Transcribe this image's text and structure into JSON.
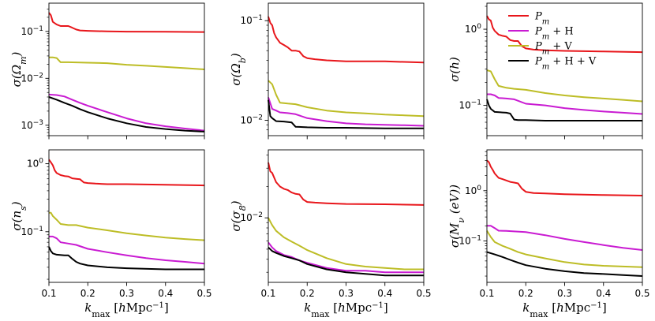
{
  "chart_data": {
    "type": "line",
    "layout": "2x3 grid of panels",
    "legend": {
      "location": "top-right panel, upper-right",
      "entries": [
        {
          "label": "P_m",
          "color": "#e8161b"
        },
        {
          "label": "P_m + H",
          "color": "#c91bd2"
        },
        {
          "label": "P_m + V",
          "color": "#bdbd26"
        },
        {
          "label": "P_m + H + V",
          "color": "#000000"
        }
      ]
    },
    "xlabel": "k_max [hMpc^-1]",
    "xlim": [
      0.1,
      0.5
    ],
    "xticks": [
      0.1,
      0.2,
      0.3,
      0.4,
      0.5
    ],
    "panels": [
      {
        "ylabel": "σ(Ω_m)",
        "yscale": "log",
        "ylim": [
          0.0006,
          0.4
        ],
        "yticks": [
          {
            "v": 0.1,
            "label": "10^-1"
          },
          {
            "v": 0.01,
            "label": "10^-2"
          },
          {
            "v": 0.001,
            "label": "10^-3"
          }
        ],
        "series": [
          {
            "name": "P_m",
            "x": [
              0.1,
              0.105,
              0.11,
              0.12,
              0.13,
              0.14,
              0.15,
              0.16,
              0.17,
              0.18,
              0.2,
              0.25,
              0.3,
              0.4,
              0.5
            ],
            "y": [
              0.25,
              0.22,
              0.16,
              0.14,
              0.13,
              0.13,
              0.13,
              0.12,
              0.11,
              0.105,
              0.103,
              0.1,
              0.099,
              0.098,
              0.097
            ]
          },
          {
            "name": "P_m + H",
            "x": [
              0.1,
              0.12,
              0.14,
              0.16,
              0.18,
              0.2,
              0.25,
              0.3,
              0.35,
              0.4,
              0.45,
              0.5
            ],
            "y": [
              0.0045,
              0.0044,
              0.0041,
              0.0035,
              0.003,
              0.0026,
              0.0019,
              0.0014,
              0.0011,
              0.00095,
              0.00085,
              0.00077
            ]
          },
          {
            "name": "P_m + V",
            "x": [
              0.1,
              0.11,
              0.12,
              0.13,
              0.15,
              0.2,
              0.25,
              0.3,
              0.35,
              0.4,
              0.45,
              0.5
            ],
            "y": [
              0.028,
              0.028,
              0.027,
              0.022,
              0.022,
              0.0215,
              0.021,
              0.0195,
              0.0185,
              0.0175,
              0.0165,
              0.0155
            ]
          },
          {
            "name": "P_m + H + V",
            "x": [
              0.1,
              0.12,
              0.14,
              0.16,
              0.18,
              0.2,
              0.25,
              0.3,
              0.35,
              0.4,
              0.45,
              0.5
            ],
            "y": [
              0.004,
              0.0035,
              0.003,
              0.0026,
              0.0022,
              0.0019,
              0.0014,
              0.0011,
              0.00092,
              0.00083,
              0.00077,
              0.00073
            ]
          }
        ]
      },
      {
        "ylabel": "σ(Ω_b)",
        "yscale": "log",
        "ylim": [
          0.007,
          0.15
        ],
        "yticks": [
          {
            "v": 0.1,
            "label": "10^-1"
          },
          {
            "v": 0.01,
            "label": "10^-2"
          }
        ],
        "series": [
          {
            "name": "P_m",
            "x": [
              0.1,
              0.105,
              0.11,
              0.115,
              0.12,
              0.13,
              0.14,
              0.15,
              0.16,
              0.17,
              0.18,
              0.19,
              0.2,
              0.22,
              0.25,
              0.3,
              0.4,
              0.5
            ],
            "y": [
              0.11,
              0.095,
              0.09,
              0.075,
              0.068,
              0.06,
              0.057,
              0.054,
              0.05,
              0.05,
              0.049,
              0.044,
              0.042,
              0.041,
              0.04,
              0.039,
              0.039,
              0.038
            ]
          },
          {
            "name": "P_m + H",
            "x": [
              0.1,
              0.11,
              0.12,
              0.13,
              0.15,
              0.17,
              0.2,
              0.25,
              0.3,
              0.35,
              0.4,
              0.45,
              0.5
            ],
            "y": [
              0.017,
              0.013,
              0.0125,
              0.012,
              0.0118,
              0.0115,
              0.0105,
              0.0098,
              0.0093,
              0.0091,
              0.009,
              0.0089,
              0.0088
            ]
          },
          {
            "name": "P_m + V",
            "x": [
              0.1,
              0.11,
              0.12,
              0.13,
              0.15,
              0.17,
              0.2,
              0.25,
              0.3,
              0.35,
              0.4,
              0.45,
              0.5
            ],
            "y": [
              0.025,
              0.023,
              0.018,
              0.015,
              0.0147,
              0.0145,
              0.0135,
              0.0125,
              0.012,
              0.0117,
              0.0114,
              0.0112,
              0.011
            ]
          },
          {
            "name": "P_m + H + V",
            "x": [
              0.1,
              0.105,
              0.11,
              0.12,
              0.14,
              0.16,
              0.17,
              0.2,
              0.25,
              0.3,
              0.4,
              0.5
            ],
            "y": [
              0.016,
              0.011,
              0.0105,
              0.0098,
              0.0097,
              0.0095,
              0.0086,
              0.0085,
              0.0084,
              0.0084,
              0.0083,
              0.0083
            ]
          }
        ]
      },
      {
        "ylabel": "σ(h)",
        "yscale": "log",
        "ylim": [
          0.04,
          2.2
        ],
        "yticks": [
          {
            "v": 1,
            "label": "10^0"
          },
          {
            "v": 0.1,
            "label": "10^-1"
          }
        ],
        "series": [
          {
            "name": "P_m",
            "x": [
              0.1,
              0.105,
              0.11,
              0.115,
              0.12,
              0.13,
              0.14,
              0.15,
              0.16,
              0.17,
              0.18,
              0.19,
              0.2,
              0.22,
              0.25,
              0.3,
              0.4,
              0.5
            ],
            "y": [
              1.5,
              1.35,
              1.3,
              1.05,
              0.95,
              0.85,
              0.82,
              0.8,
              0.72,
              0.7,
              0.7,
              0.6,
              0.56,
              0.54,
              0.53,
              0.52,
              0.51,
              0.5
            ]
          },
          {
            "name": "P_m + H",
            "x": [
              0.1,
              0.11,
              0.12,
              0.13,
              0.15,
              0.17,
              0.2,
              0.25,
              0.3,
              0.35,
              0.4,
              0.45,
              0.5
            ],
            "y": [
              0.14,
              0.14,
              0.135,
              0.125,
              0.123,
              0.12,
              0.105,
              0.1,
              0.092,
              0.087,
              0.083,
              0.08,
              0.077
            ]
          },
          {
            "name": "P_m + V",
            "x": [
              0.1,
              0.11,
              0.12,
              0.13,
              0.15,
              0.17,
              0.2,
              0.25,
              0.3,
              0.35,
              0.4,
              0.45,
              0.5
            ],
            "y": [
              0.29,
              0.28,
              0.22,
              0.18,
              0.17,
              0.165,
              0.16,
              0.145,
              0.135,
              0.128,
              0.123,
              0.118,
              0.113
            ]
          },
          {
            "name": "P_m + H + V",
            "x": [
              0.1,
              0.105,
              0.11,
              0.12,
              0.15,
              0.16,
              0.17,
              0.18,
              0.2,
              0.25,
              0.3,
              0.4,
              0.5
            ],
            "y": [
              0.12,
              0.1,
              0.09,
              0.082,
              0.08,
              0.078,
              0.065,
              0.064,
              0.064,
              0.063,
              0.063,
              0.063,
              0.063
            ]
          }
        ]
      },
      {
        "ylabel": "σ(n_s)",
        "yscale": "log",
        "ylim": [
          0.018,
          1.6
        ],
        "yticks": [
          {
            "v": 1,
            "label": "10^0"
          },
          {
            "v": 0.1,
            "label": "10^-1"
          }
        ],
        "series": [
          {
            "name": "P_m",
            "x": [
              0.1,
              0.105,
              0.11,
              0.115,
              0.12,
              0.13,
              0.14,
              0.15,
              0.16,
              0.17,
              0.18,
              0.19,
              0.2,
              0.22,
              0.25,
              0.3,
              0.4,
              0.5
            ],
            "y": [
              1.15,
              1.05,
              0.95,
              0.8,
              0.73,
              0.68,
              0.66,
              0.65,
              0.61,
              0.6,
              0.59,
              0.53,
              0.52,
              0.51,
              0.5,
              0.5,
              0.49,
              0.48
            ]
          },
          {
            "name": "P_m + H",
            "x": [
              0.1,
              0.11,
              0.12,
              0.13,
              0.15,
              0.17,
              0.2,
              0.25,
              0.3,
              0.35,
              0.4,
              0.45,
              0.5
            ],
            "y": [
              0.085,
              0.085,
              0.08,
              0.07,
              0.067,
              0.064,
              0.056,
              0.05,
              0.045,
              0.041,
              0.038,
              0.036,
              0.034
            ]
          },
          {
            "name": "P_m + V",
            "x": [
              0.1,
              0.105,
              0.11,
              0.12,
              0.13,
              0.15,
              0.17,
              0.2,
              0.25,
              0.3,
              0.35,
              0.4,
              0.45,
              0.5
            ],
            "y": [
              0.19,
              0.19,
              0.17,
              0.15,
              0.13,
              0.125,
              0.125,
              0.115,
              0.105,
              0.095,
              0.088,
              0.082,
              0.078,
              0.075
            ]
          },
          {
            "name": "P_m + H + V",
            "x": [
              0.1,
              0.105,
              0.11,
              0.12,
              0.14,
              0.15,
              0.16,
              0.17,
              0.18,
              0.2,
              0.25,
              0.3,
              0.4,
              0.5
            ],
            "y": [
              0.06,
              0.052,
              0.048,
              0.046,
              0.045,
              0.045,
              0.04,
              0.036,
              0.034,
              0.032,
              0.03,
              0.029,
              0.028,
              0.028
            ]
          }
        ]
      },
      {
        "ylabel": "σ(σ_8)",
        "yscale": "log",
        "ylim": [
          0.0024,
          0.045
        ],
        "yticks": [
          {
            "v": 0.01,
            "label": "10^-2"
          }
        ],
        "series": [
          {
            "name": "P_m",
            "x": [
              0.1,
              0.105,
              0.11,
              0.12,
              0.13,
              0.14,
              0.15,
              0.16,
              0.17,
              0.18,
              0.19,
              0.2,
              0.22,
              0.25,
              0.3,
              0.4,
              0.5
            ],
            "y": [
              0.034,
              0.028,
              0.027,
              0.022,
              0.02,
              0.019,
              0.0185,
              0.0175,
              0.017,
              0.0168,
              0.015,
              0.0142,
              0.014,
              0.0138,
              0.0136,
              0.0135,
              0.0133
            ]
          },
          {
            "name": "P_m + H",
            "x": [
              0.1,
              0.11,
              0.12,
              0.14,
              0.16,
              0.18,
              0.2,
              0.25,
              0.3,
              0.35,
              0.4,
              0.45,
              0.5
            ],
            "y": [
              0.0058,
              0.0052,
              0.0048,
              0.0044,
              0.0042,
              0.0039,
              0.0037,
              0.0033,
              0.0031,
              0.0031,
              0.003,
              0.003,
              0.003
            ]
          },
          {
            "name": "P_m + V",
            "x": [
              0.1,
              0.11,
              0.12,
              0.14,
              0.16,
              0.18,
              0.2,
              0.25,
              0.3,
              0.35,
              0.4,
              0.45,
              0.5
            ],
            "y": [
              0.01,
              0.0085,
              0.0075,
              0.0065,
              0.0059,
              0.0054,
              0.0049,
              0.0041,
              0.0036,
              0.0034,
              0.0033,
              0.0032,
              0.0032
            ]
          },
          {
            "name": "P_m + H + V",
            "x": [
              0.1,
              0.11,
              0.12,
              0.14,
              0.16,
              0.18,
              0.2,
              0.25,
              0.3,
              0.35,
              0.4,
              0.45,
              0.5
            ],
            "y": [
              0.0052,
              0.0048,
              0.0046,
              0.0043,
              0.0041,
              0.0039,
              0.0036,
              0.0032,
              0.003,
              0.0029,
              0.0028,
              0.0028,
              0.0028
            ]
          }
        ]
      },
      {
        "ylabel": "σ(M_ν (eV))",
        "yscale": "log",
        "ylim": [
          0.015,
          6.5
        ],
        "yticks": [
          {
            "v": 1,
            "label": "10^0"
          },
          {
            "v": 0.1,
            "label": "10^-1"
          }
        ],
        "series": [
          {
            "name": "P_m",
            "x": [
              0.1,
              0.105,
              0.11,
              0.115,
              0.12,
              0.13,
              0.14,
              0.15,
              0.16,
              0.17,
              0.18,
              0.19,
              0.2,
              0.22,
              0.25,
              0.3,
              0.4,
              0.5
            ],
            "y": [
              4.0,
              3.7,
              3.0,
              2.6,
              2.2,
              1.8,
              1.7,
              1.6,
              1.5,
              1.45,
              1.4,
              1.1,
              0.95,
              0.9,
              0.88,
              0.85,
              0.82,
              0.8
            ]
          },
          {
            "name": "P_m + H",
            "x": [
              0.1,
              0.11,
              0.12,
              0.13,
              0.15,
              0.17,
              0.2,
              0.25,
              0.3,
              0.35,
              0.4,
              0.45,
              0.5
            ],
            "y": [
              0.2,
              0.2,
              0.18,
              0.16,
              0.158,
              0.155,
              0.15,
              0.13,
              0.11,
              0.095,
              0.083,
              0.073,
              0.066
            ]
          },
          {
            "name": "P_m + V",
            "x": [
              0.1,
              0.11,
              0.12,
              0.14,
              0.16,
              0.18,
              0.2,
              0.25,
              0.3,
              0.35,
              0.4,
              0.45,
              0.5
            ],
            "y": [
              0.16,
              0.12,
              0.095,
              0.08,
              0.07,
              0.06,
              0.054,
              0.045,
              0.038,
              0.034,
              0.032,
              0.031,
              0.03
            ]
          },
          {
            "name": "P_m + H + V",
            "x": [
              0.1,
              0.12,
              0.14,
              0.16,
              0.18,
              0.2,
              0.25,
              0.3,
              0.35,
              0.4,
              0.45,
              0.5
            ],
            "y": [
              0.06,
              0.054,
              0.048,
              0.042,
              0.037,
              0.033,
              0.028,
              0.025,
              0.023,
              0.022,
              0.021,
              0.02
            ]
          }
        ]
      }
    ]
  }
}
